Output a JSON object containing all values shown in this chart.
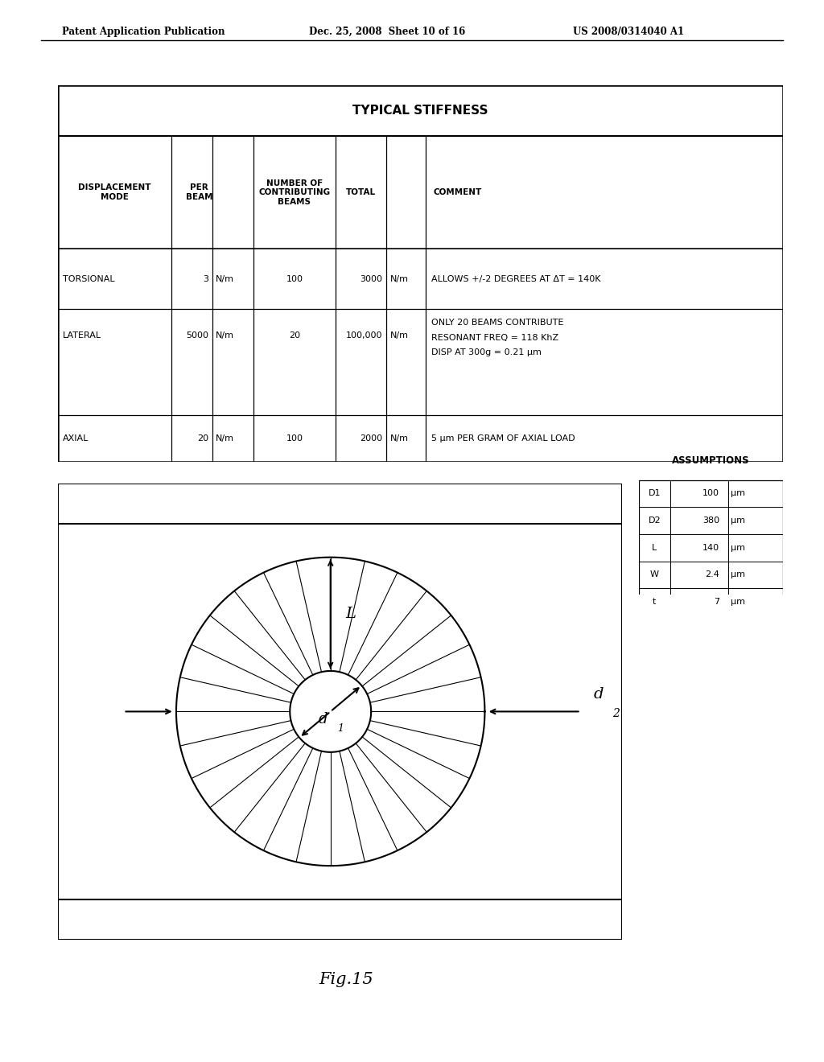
{
  "header_left": "Patent Application Publication",
  "header_center": "Dec. 25, 2008  Sheet 10 of 16",
  "header_right": "US 2008/0314040 A1",
  "table_title": "TYPICAL STIFFNESS",
  "assumptions_title": "ASSUMPTIONS",
  "assumptions": [
    [
      "D1",
      "100",
      "μm"
    ],
    [
      "D2",
      "380",
      "μm"
    ],
    [
      "L",
      "140",
      "μm"
    ],
    [
      "W",
      "2.4",
      "μm"
    ],
    [
      "t",
      "7",
      "μm"
    ]
  ],
  "fig_label": "Fig.15",
  "num_spokes": 28,
  "bg_color": "#ffffff",
  "line_color": "#000000"
}
